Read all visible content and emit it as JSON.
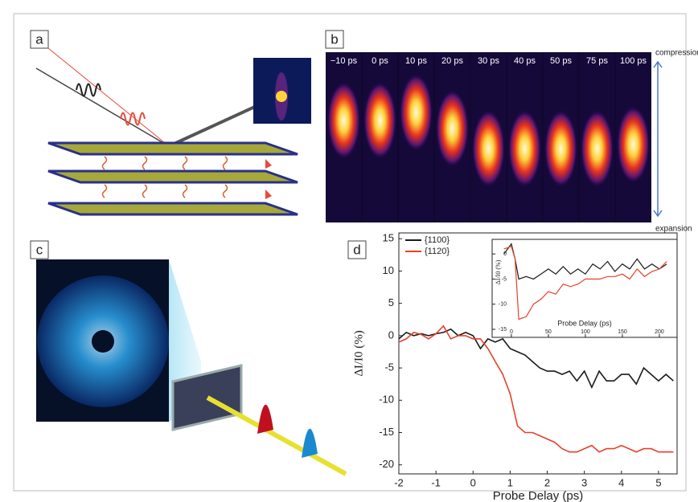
{
  "panels": {
    "a": {
      "label": "a"
    },
    "b": {
      "label": "b",
      "frames": [
        "−10 ps",
        "0 ps",
        "10 ps",
        "20 ps",
        "30 ps",
        "40 ps",
        "50 ps",
        "75 ps",
        "100 ps"
      ],
      "top_label": "compression",
      "bottom_label": "expansion"
    },
    "c": {
      "label": "c"
    },
    "d": {
      "label": "d"
    }
  },
  "chart_data": [
    {
      "type": "line",
      "xlabel": "Probe Delay (ps)",
      "ylabel": "ΔI/I0 (%)",
      "xlim": [
        -2,
        5.5
      ],
      "ylim": [
        -21.4,
        15.9
      ],
      "xticks": [
        -2,
        -1,
        0,
        1,
        2,
        3,
        4,
        5
      ],
      "yticks": [
        15,
        10,
        5,
        0,
        -5,
        -10,
        -15,
        -20
      ],
      "x": [
        -2,
        -1.8,
        -1.6,
        -1.4,
        -1.2,
        -1,
        -0.8,
        -0.6,
        -0.4,
        -0.2,
        0,
        0.2,
        0.4,
        0.6,
        0.8,
        1,
        1.2,
        1.4,
        1.6,
        1.8,
        2,
        2.2,
        2.4,
        2.6,
        2.8,
        3,
        3.2,
        3.4,
        3.6,
        3.8,
        4,
        4.2,
        4.4,
        4.6,
        4.8,
        5,
        5.2,
        5.4
      ],
      "series": [
        {
          "name": "{1100}",
          "color": "#1a1a1a",
          "values": [
            -0.5,
            0.5,
            0,
            0.3,
            0,
            0.3,
            0.5,
            1,
            0,
            0.5,
            0,
            -2,
            -0.5,
            -1,
            -0.5,
            -2,
            -2.5,
            -3,
            -4,
            -5,
            -5.5,
            -5.5,
            -6,
            -5.5,
            -7,
            -5.5,
            -8,
            -5.5,
            -7,
            -7,
            -6,
            -6,
            -7.5,
            -5,
            -6,
            -7,
            -6,
            -7
          ]
        },
        {
          "name": "{1120}",
          "color": "#e8402a",
          "values": [
            -1,
            -0.5,
            0.5,
            0.2,
            -0.5,
            0.3,
            1.5,
            -0.5,
            0,
            0,
            -0.5,
            -0.5,
            -2,
            -4,
            -6,
            -9,
            -14,
            -15,
            -15,
            -15.5,
            -16,
            -16.5,
            -17.5,
            -18,
            -18,
            -17.5,
            -17,
            -18,
            -17.5,
            -17.5,
            -17,
            -17.5,
            -18,
            -17.5,
            -17.5,
            -18,
            -18,
            -18
          ]
        }
      ]
    },
    {
      "type": "line",
      "xlabel": "Probe Delay (ps)",
      "ylabel": "ΔI/I0 (%)",
      "xlim": [
        -26,
        224
      ],
      "ylim": [
        -16.6,
        2.9
      ],
      "xticks": [
        0,
        50,
        100,
        150,
        200
      ],
      "yticks": [
        0,
        -5,
        -10,
        -15
      ],
      "x": [
        -10,
        0,
        5,
        10,
        20,
        30,
        40,
        50,
        60,
        70,
        80,
        90,
        100,
        110,
        120,
        130,
        140,
        150,
        160,
        170,
        180,
        190,
        200,
        210
      ],
      "series": [
        {
          "color": "#1a1a1a",
          "values": [
            0,
            2,
            -1,
            -5,
            -4.5,
            -5,
            -4,
            -3,
            -4,
            -2.5,
            -4,
            -3,
            -4,
            -2,
            -3,
            -1.5,
            -3.5,
            -2,
            -3,
            -1,
            -3,
            -2,
            -3,
            -2
          ]
        },
        {
          "color": "#e8402a",
          "values": [
            1,
            1.5,
            -1,
            -13,
            -12.5,
            -10,
            -9,
            -7.5,
            -8,
            -6,
            -6.5,
            -6,
            -5,
            -5,
            -5,
            -4.5,
            -4.5,
            -4,
            -5,
            -3,
            -4.5,
            -3.5,
            -3,
            -1.5
          ]
        }
      ]
    }
  ]
}
